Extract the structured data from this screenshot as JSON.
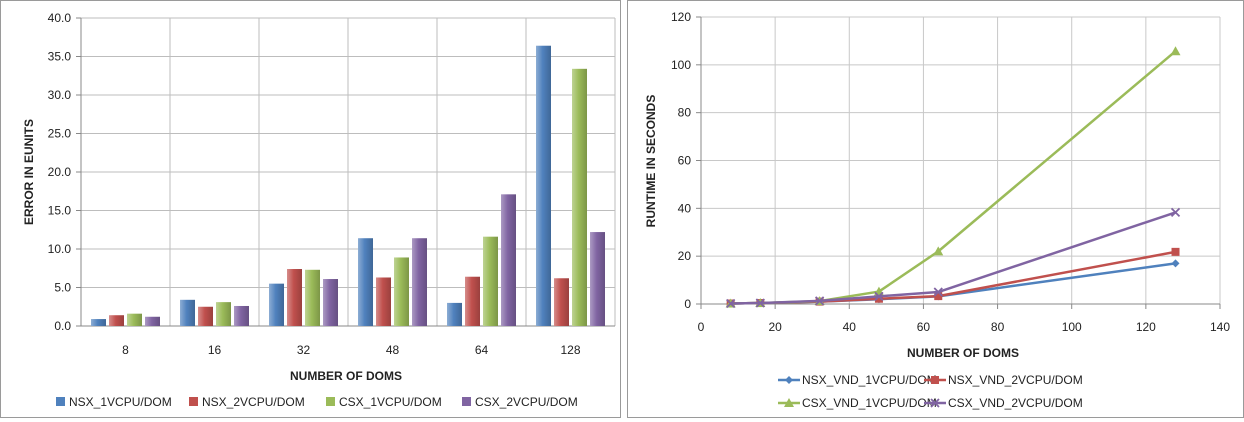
{
  "chart_data": [
    {
      "type": "bar",
      "title": "",
      "xlabel": "NUMBER OF DOMS",
      "ylabel": "ERROR IN EUNITS",
      "categories": [
        "8",
        "16",
        "32",
        "48",
        "64",
        "128"
      ],
      "ylim": [
        0,
        40
      ],
      "yticks": [
        "0.0",
        "5.0",
        "10.0",
        "15.0",
        "20.0",
        "25.0",
        "30.0",
        "35.0",
        "40.0"
      ],
      "grid": true,
      "legend_position": "bottom",
      "series": [
        {
          "name": "NSX_1VCPU/DOM",
          "color": "#4f81bd",
          "values": [
            0.9,
            3.4,
            5.5,
            11.4,
            3.0,
            36.4
          ]
        },
        {
          "name": "NSX_2VCPU/DOM",
          "color": "#c0504d",
          "values": [
            1.4,
            2.5,
            7.4,
            6.3,
            6.4,
            6.2
          ]
        },
        {
          "name": "CSX_1VCPU/DOM",
          "color": "#9bbb59",
          "values": [
            1.6,
            3.1,
            7.3,
            8.9,
            11.6,
            33.4
          ]
        },
        {
          "name": "CSX_2VCPU/DOM",
          "color": "#8064a2",
          "values": [
            1.2,
            2.6,
            6.1,
            11.4,
            17.1,
            12.2
          ]
        }
      ]
    },
    {
      "type": "line",
      "title": "",
      "xlabel": "NUMBER OF DOMS",
      "ylabel": "RUNTIME IN SECONDS",
      "xlim": [
        0,
        140
      ],
      "ylim": [
        0,
        120
      ],
      "xticks": [
        0,
        20,
        40,
        60,
        80,
        100,
        120,
        140
      ],
      "yticks": [
        0,
        20,
        40,
        60,
        80,
        100,
        120
      ],
      "grid": true,
      "legend_position": "bottom",
      "x": [
        8,
        16,
        32,
        48,
        64,
        128
      ],
      "series": [
        {
          "name": "NSX_VND_1VCPU/DOM",
          "color": "#4f81bd",
          "marker": "diamond",
          "values": [
            0.2,
            0.4,
            1.0,
            2.0,
            3.2,
            17.0
          ]
        },
        {
          "name": "NSX_VND_2VCPU/DOM",
          "color": "#c0504d",
          "marker": "square",
          "values": [
            0.2,
            0.4,
            1.0,
            2.2,
            3.3,
            21.8
          ]
        },
        {
          "name": "CSX_VND_1VCPU/DOM",
          "color": "#9bbb59",
          "marker": "triangle",
          "values": [
            0.2,
            0.4,
            1.2,
            5.2,
            22.0,
            105.7
          ]
        },
        {
          "name": "CSX_VND_2VCPU/DOM",
          "color": "#8064a2",
          "marker": "x",
          "values": [
            0.2,
            0.4,
            1.3,
            3.2,
            5.0,
            38.3
          ]
        }
      ]
    }
  ]
}
